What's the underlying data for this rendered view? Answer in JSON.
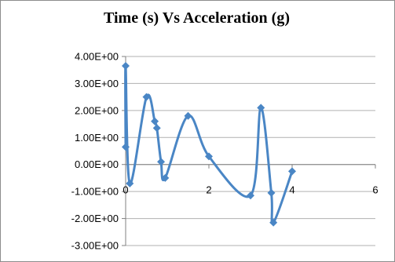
{
  "chart_data": {
    "type": "scatter",
    "title": "Time (s) Vs Acceleration (g)",
    "xlabel": "",
    "ylabel": "",
    "xlim": [
      0,
      6
    ],
    "ylim": [
      -3,
      4
    ],
    "x_ticks": [
      0,
      2,
      4,
      6
    ],
    "x_tick_labels": [
      "0",
      "2",
      "4",
      "6"
    ],
    "y_ticks": [
      4,
      3,
      2,
      1,
      0,
      -1,
      -2,
      -3
    ],
    "y_tick_labels": [
      "4.00E+00",
      "3.00E+00",
      "2.00E+00",
      "1.00E+00",
      "0.00E+00",
      "-1.00E+00",
      "-2.00E+00",
      "-3.00E+00"
    ],
    "grid": "horizontal",
    "legend": "none",
    "line_style": "smoothed lines with diamond markers",
    "series": [
      {
        "color": "#4a86c5",
        "points": [
          {
            "x": 0.0,
            "y": 0.65
          },
          {
            "x": 0.0,
            "y": 3.65
          },
          {
            "x": 0.1,
            "y": -0.7
          },
          {
            "x": 0.5,
            "y": 2.5
          },
          {
            "x": 0.7,
            "y": 1.6
          },
          {
            "x": 0.75,
            "y": 1.35
          },
          {
            "x": 0.85,
            "y": 0.1
          },
          {
            "x": 0.95,
            "y": -0.5
          },
          {
            "x": 1.5,
            "y": 1.8
          },
          {
            "x": 2.0,
            "y": 0.3
          },
          {
            "x": 3.0,
            "y": -1.15
          },
          {
            "x": 3.25,
            "y": 2.1
          },
          {
            "x": 3.5,
            "y": -1.05
          },
          {
            "x": 3.55,
            "y": -2.15
          },
          {
            "x": 4.0,
            "y": -0.25
          }
        ]
      }
    ]
  }
}
